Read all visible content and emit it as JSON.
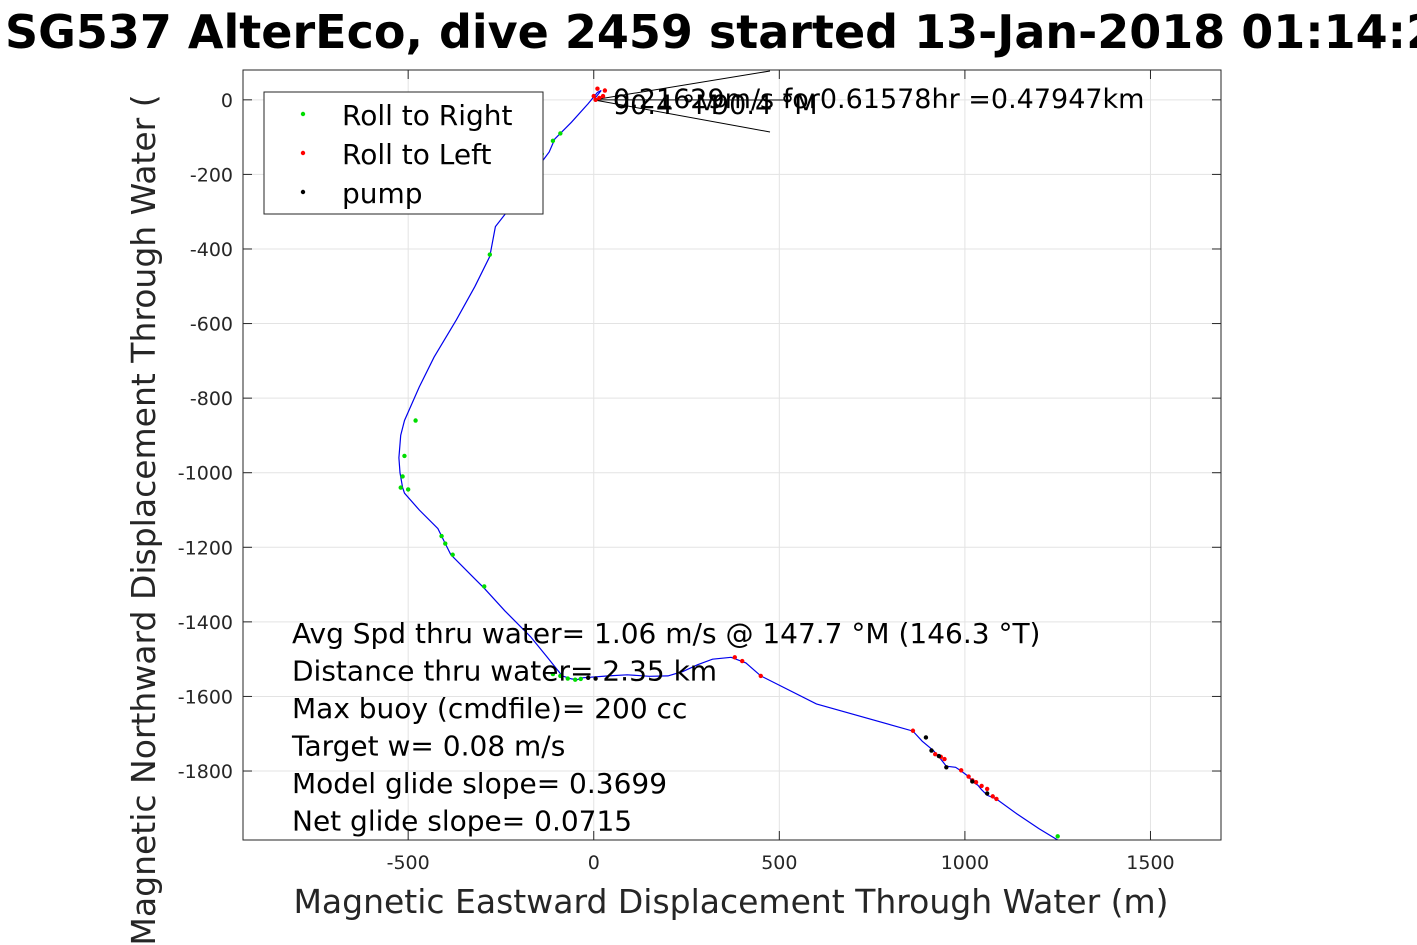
{
  "title": "SG537 AlterEco, dive 2459 started 13-Jan-2018 01:14:2",
  "chart_data": {
    "type": "scatter",
    "xlabel": "Magnetic Eastward Displacement Through Water (m)",
    "ylabel": "Magnetic Northward Displacement Through Water (",
    "xlim": [
      -945,
      1690
    ],
    "ylim": [
      -1985,
      80
    ],
    "xticks": [
      -500,
      0,
      500,
      1000,
      1500
    ],
    "xtick_labels": [
      "-500",
      "0",
      "500",
      "1000",
      "1500"
    ],
    "yticks": [
      0,
      -200,
      -400,
      -600,
      -800,
      -1000,
      -1200,
      -1400,
      -1600,
      -1800
    ],
    "ytick_labels": [
      "0",
      "-200",
      "-400",
      "-600",
      "-800",
      "-1000",
      "-1200",
      "-1400",
      "-1600",
      "-1800"
    ],
    "grid": true,
    "legend_position": "top-left",
    "legend": [
      {
        "label": "Roll to Right",
        "color": "#00dd00"
      },
      {
        "label": "Roll to Left",
        "color": "#ff0000"
      },
      {
        "label": "pump",
        "color": "#000000"
      }
    ],
    "track_color": "#0000ee",
    "track": {
      "x": [
        0,
        20,
        10,
        -15,
        -60,
        -105,
        -120,
        -150,
        -210,
        -265,
        -280,
        -320,
        -370,
        -430,
        -470,
        -510,
        -520,
        -525,
        -522,
        -515,
        -510,
        -470,
        -420,
        -400,
        -385,
        -330,
        -295,
        -240,
        -170,
        -125,
        -105,
        -85,
        -60,
        -45,
        -30,
        40,
        90,
        150,
        200,
        240,
        280,
        320,
        370,
        410,
        450,
        600,
        860,
        885,
        915,
        935,
        950,
        975,
        990,
        1010,
        1020,
        1035,
        1045,
        1060,
        1085,
        1140,
        1200,
        1250
      ],
      "y": [
        0,
        25,
        20,
        -10,
        -60,
        -105,
        -140,
        -180,
        -270,
        -340,
        -420,
        -500,
        -590,
        -690,
        -770,
        -860,
        -900,
        -960,
        -1000,
        -1040,
        -1055,
        -1100,
        -1150,
        -1190,
        -1220,
        -1275,
        -1310,
        -1370,
        -1440,
        -1495,
        -1520,
        -1545,
        -1553,
        -1555,
        -1550,
        -1545,
        -1542,
        -1546,
        -1545,
        -1533,
        -1515,
        -1500,
        -1495,
        -1510,
        -1545,
        -1620,
        -1693,
        -1720,
        -1745,
        -1768,
        -1787,
        -1790,
        -1800,
        -1815,
        -1828,
        -1838,
        -1850,
        -1865,
        -1875,
        -1915,
        -1955,
        -1985
      ]
    },
    "roll_right": {
      "x": [
        -90,
        -110,
        -140,
        -280,
        -480,
        -510,
        -515,
        -520,
        -500,
        -410,
        -400,
        -380,
        -295,
        -110,
        -90,
        -70,
        -50,
        -35,
        1250
      ],
      "y": [
        -90,
        -110,
        -145,
        -415,
        -860,
        -955,
        -1010,
        -1040,
        -1045,
        -1170,
        -1190,
        -1220,
        -1305,
        -1540,
        -1545,
        -1552,
        -1555,
        -1553,
        -1975
      ]
    },
    "roll_left": {
      "x": [
        5,
        15,
        25,
        30,
        10,
        0,
        380,
        400,
        450,
        860,
        920,
        935,
        945,
        990,
        1010,
        1020,
        1030,
        1045,
        1060,
        1075,
        1085
      ],
      "y": [
        0,
        5,
        10,
        25,
        30,
        10,
        -1495,
        -1505,
        -1545,
        -1692,
        -1755,
        -1762,
        -1768,
        -1798,
        -1815,
        -1825,
        -1830,
        -1840,
        -1848,
        -1868,
        -1875
      ]
    },
    "pump": {
      "x": [
        -15,
        5,
        895,
        910,
        930,
        950,
        1020,
        1060
      ],
      "y": [
        -1550,
        -1552,
        -1710,
        -1745,
        -1760,
        -1790,
        -1828,
        -1860
      ]
    },
    "annotations": [
      {
        "text": "0.21629m/s for0.61578hr =0.47947km",
        "x": 60,
        "y": 0
      },
      {
        "text": "90.4 °M",
        "x": 60,
        "y": -10
      },
      {
        "text": "90.4 °M",
        "x": 270,
        "y": -10
      }
    ],
    "stats": [
      "Avg Spd thru water=  1.06 m/s @ 147.7 °M (146.3 °T)",
      "Distance thru water=  2.35 km",
      "Max buoy (cmdfile)= 200 cc",
      "Target w= 0.08 m/s",
      "Model glide slope= 0.3699",
      "Net glide slope= 0.0715"
    ]
  }
}
